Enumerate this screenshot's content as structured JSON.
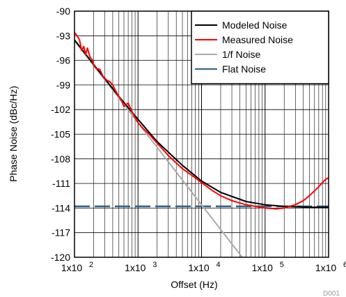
{
  "chart_data": {
    "type": "line",
    "xlabel": "Offset (Hz)",
    "ylabel": "Phase Noise (dBc/Hz)",
    "x_scale": "log",
    "xlim": [
      100,
      1000000
    ],
    "ylim": [
      -120,
      -90
    ],
    "x_tick_labels": [
      {
        "base": "1x10",
        "exp": "2",
        "value": 100
      },
      {
        "base": "1x10",
        "exp": "3",
        "value": 1000
      },
      {
        "base": "1x10",
        "exp": "4",
        "value": 10000
      },
      {
        "base": "1x10",
        "exp": "5",
        "value": 100000
      },
      {
        "base": "1x10",
        "exp": "6",
        "value": 1000000
      }
    ],
    "y_ticks": [
      -90,
      -93,
      -96,
      -99,
      -102,
      -105,
      -108,
      -111,
      -114,
      -117,
      -120
    ],
    "grid": true,
    "legend_position": "top-right",
    "series": [
      {
        "name": "Modeled Noise",
        "color": "#000000",
        "style": "solid",
        "x": [
          100,
          200,
          500,
          1000,
          2000,
          5000,
          10000,
          20000,
          50000,
          100000,
          200000,
          500000,
          1000000
        ],
        "y": [
          -93.5,
          -96.5,
          -100.4,
          -103.2,
          -105.9,
          -108.8,
          -110.7,
          -112.1,
          -113.2,
          -113.6,
          -113.8,
          -113.9,
          -113.9
        ]
      },
      {
        "name": "Measured Noise",
        "color": "#ff0000",
        "style": "solid",
        "x": [
          100,
          110,
          120,
          130,
          140,
          150,
          160,
          175,
          190,
          200,
          220,
          250,
          280,
          320,
          360,
          400,
          450,
          500,
          550,
          600,
          700,
          800,
          900,
          1000,
          1200,
          1500,
          2000,
          3000,
          5000,
          7000,
          10000,
          15000,
          20000,
          30000,
          50000,
          70000,
          100000,
          150000,
          200000,
          300000,
          400000,
          500000,
          600000,
          700000,
          800000,
          900000,
          1000000
        ],
        "y": [
          -92.6,
          -93.0,
          -93.5,
          -94.8,
          -94.3,
          -95.3,
          -94.5,
          -95.6,
          -95.9,
          -96.6,
          -97.0,
          -97.1,
          -97.9,
          -98.4,
          -98.6,
          -99.0,
          -99.8,
          -100.4,
          -100.9,
          -101.6,
          -101.2,
          -102.2,
          -103.0,
          -103.6,
          -104.3,
          -105.0,
          -106.1,
          -107.6,
          -109.2,
          -110.0,
          -110.9,
          -111.9,
          -112.5,
          -113.1,
          -113.6,
          -113.8,
          -114.0,
          -114.1,
          -114.0,
          -113.6,
          -113.1,
          -112.5,
          -111.9,
          -111.4,
          -110.9,
          -110.5,
          -110.3
        ]
      },
      {
        "name": "1/f Noise",
        "color": "#aaaaaa",
        "style": "solid",
        "x": [
          100,
          1000,
          10000,
          100000
        ],
        "y": [
          -93.6,
          -103.6,
          -113.6,
          -123.6
        ]
      },
      {
        "name": "Flat Noise",
        "color": "#2c6183",
        "style": "dashed",
        "x": [
          100,
          1000000
        ],
        "y": [
          -113.8,
          -113.8
        ]
      }
    ]
  },
  "footer_label": "D001"
}
